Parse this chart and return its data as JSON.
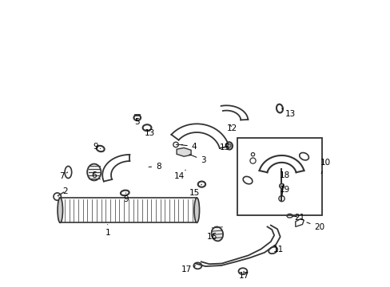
{
  "background_color": "#ffffff",
  "line_color": "#333333",
  "figsize": [
    4.89,
    3.6
  ],
  "dpi": 100
}
